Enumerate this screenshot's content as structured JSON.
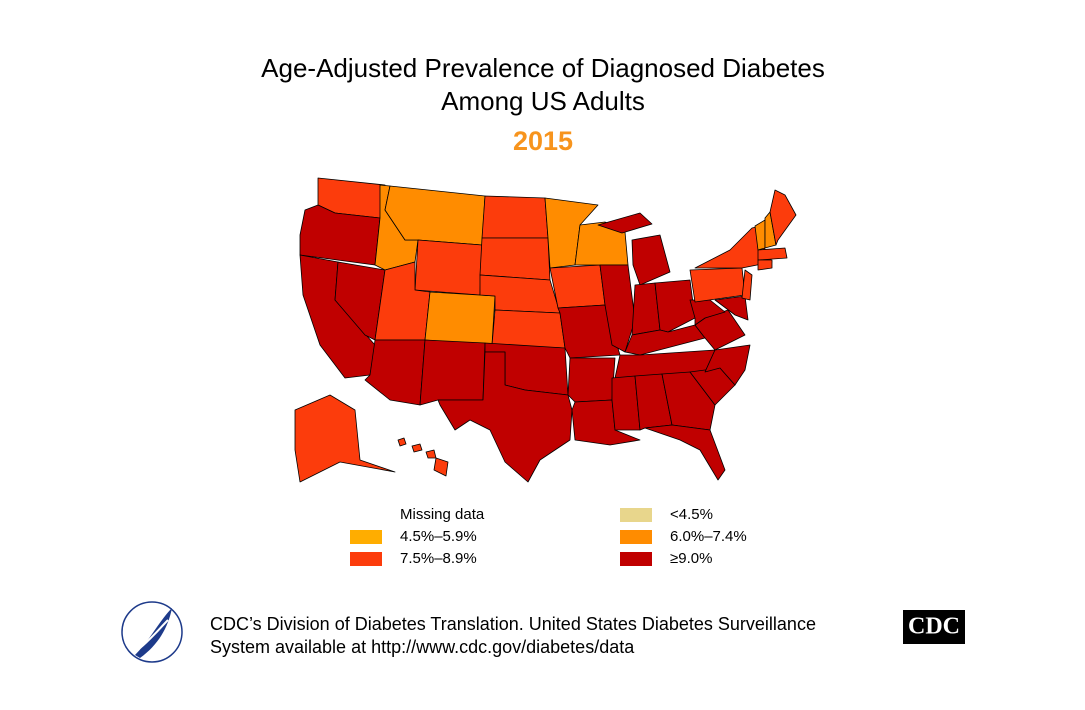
{
  "title": [
    "Age-Adjusted Prevalence of Diagnosed Diabetes",
    "Among US Adults"
  ],
  "year": "2015",
  "year_color": "#f7941d",
  "legend": [
    {
      "label": "Missing data"
    },
    {
      "label": "<4.5%",
      "color": "#e8d68c"
    },
    {
      "label": "4.5%–5.9%",
      "color": "#ffad00"
    },
    {
      "label": "6.0%–7.4%",
      "color": "#ff8c00"
    },
    {
      "label": "7.5%–8.9%",
      "color": "#fc3c0c"
    },
    {
      "label": "≥9.0%",
      "color": "#c00000"
    }
  ],
  "footer": [
    "CDC’s Division of Diabetes Translation. United States Diabetes Surveillance",
    "System available at http://www.cdc.gov/diabetes/data"
  ],
  "logo": "CDC"
}
